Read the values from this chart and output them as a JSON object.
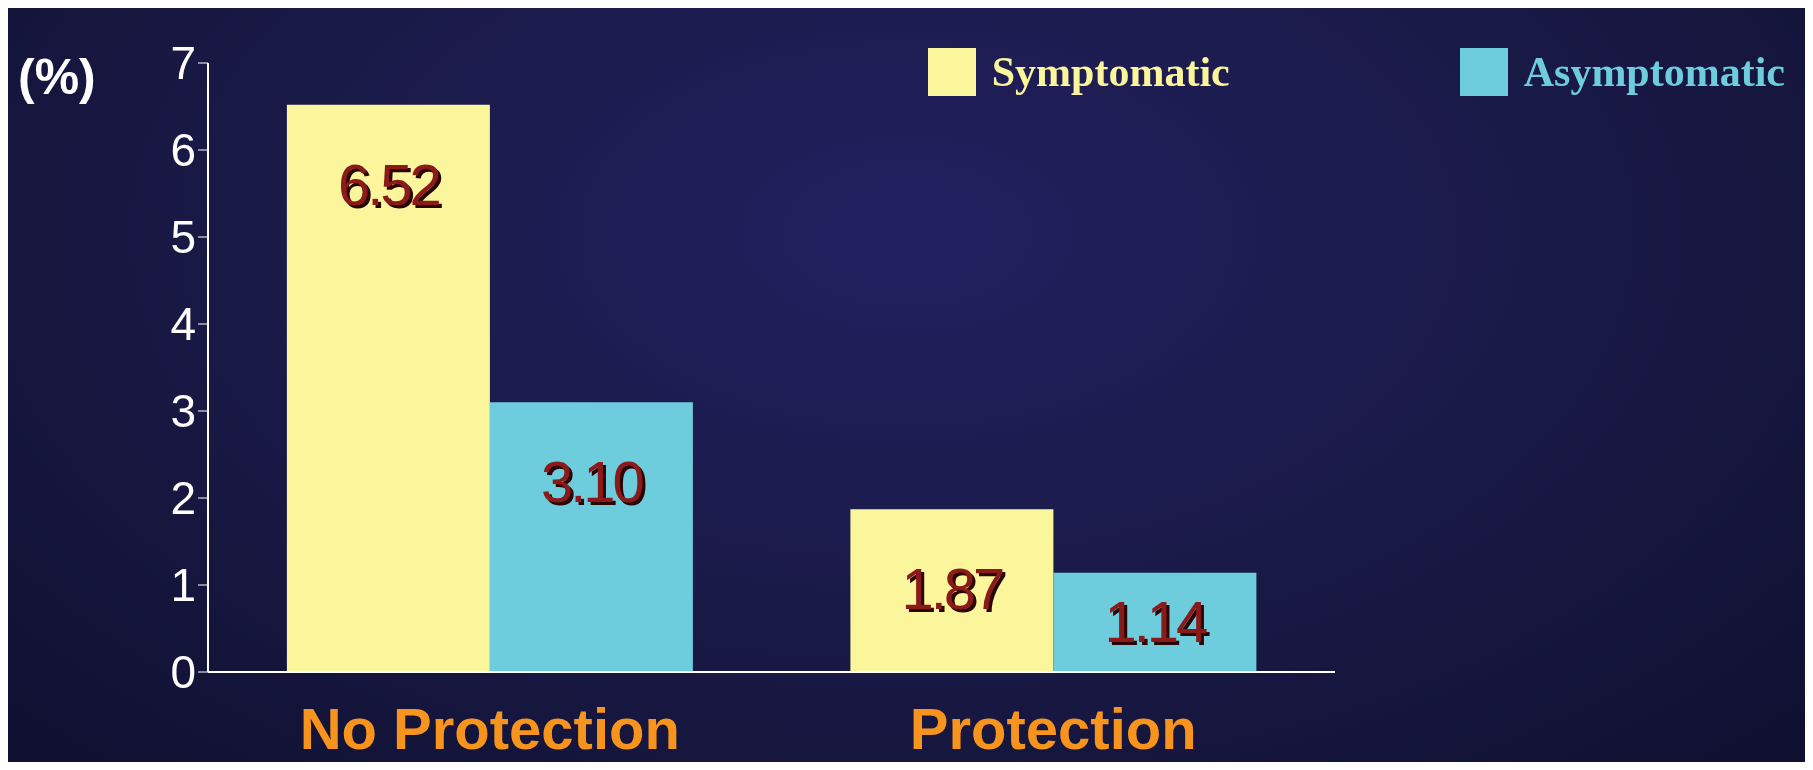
{
  "chart_data": {
    "type": "bar",
    "ylabel": "(%)",
    "categories": [
      "No Protection",
      "Protection"
    ],
    "series": [
      {
        "name": "Symptomatic",
        "color": "#fbf59c",
        "values": [
          6.52,
          1.87
        ],
        "value_labels": [
          "6.52",
          "1.87"
        ]
      },
      {
        "name": "Asymptomatic",
        "color": "#6ecddd",
        "values": [
          3.1,
          1.14
        ],
        "value_labels": [
          "3.10",
          "1.14"
        ]
      }
    ],
    "ylim": [
      0,
      7
    ],
    "yticks": [
      0,
      1,
      2,
      3,
      4,
      5,
      6,
      7
    ],
    "grid": false,
    "legend": "top right"
  }
}
